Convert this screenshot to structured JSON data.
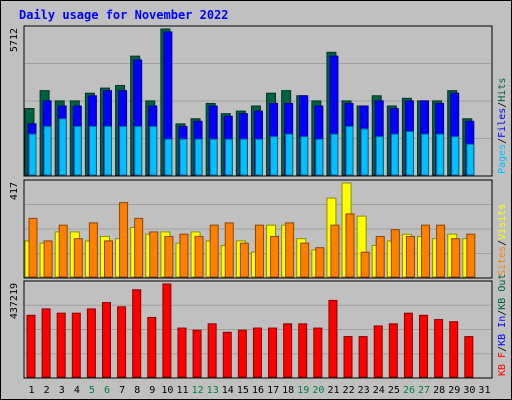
{
  "title": "Daily usage for November 2022",
  "colors": {
    "background": "#c0c0c0",
    "title_text": "#0000ff",
    "hits": "#006040",
    "files": "#0000ff",
    "pages": "#00c0ff",
    "visits": "#ffff00",
    "sites": "#ff8000",
    "kb": "#ff0000",
    "weekend_day": "#008040",
    "weekday_day": "#000000"
  },
  "chart_data": [
    {
      "type": "bar",
      "panel": "hits-files-pages",
      "max_label": "5712",
      "ylim": [
        0,
        5712
      ],
      "legend": [
        {
          "text": "Pages",
          "color_key": "pages"
        },
        {
          "text": "Files",
          "color_key": "files"
        },
        {
          "text": "Hits",
          "color_key": "hits"
        }
      ],
      "categories": [
        "1",
        "2",
        "3",
        "4",
        "5",
        "6",
        "7",
        "8",
        "9",
        "10",
        "11",
        "12",
        "13",
        "14",
        "15",
        "16",
        "17",
        "18",
        "19",
        "20",
        "21",
        "22",
        "23",
        "24",
        "25",
        "26",
        "27",
        "28",
        "29",
        "30",
        "31"
      ],
      "series": [
        {
          "name": "Hits",
          "color_key": "hits",
          "values": [
            2600,
            3300,
            2900,
            2900,
            3200,
            3400,
            3500,
            4650,
            2900,
            5712,
            2000,
            2200,
            2800,
            2400,
            2500,
            2700,
            3200,
            3300,
            3100,
            2900,
            4800,
            2900,
            2700,
            3100,
            2700,
            3000,
            2900,
            2900,
            3300,
            2200,
            0
          ]
        },
        {
          "name": "Files",
          "color_key": "files",
          "values": [
            2000,
            2900,
            2700,
            2700,
            3100,
            3300,
            3300,
            4500,
            2700,
            5600,
            1900,
            2100,
            2700,
            2300,
            2400,
            2500,
            2800,
            2800,
            3100,
            2700,
            4650,
            2800,
            2700,
            2900,
            2600,
            2900,
            2900,
            2800,
            3200,
            2100,
            0
          ]
        },
        {
          "name": "Pages",
          "color_key": "pages",
          "values": [
            1600,
            1900,
            2200,
            1900,
            1900,
            1900,
            1900,
            1900,
            1900,
            1400,
            1400,
            1400,
            1400,
            1400,
            1400,
            1400,
            1500,
            1600,
            1500,
            1400,
            1600,
            1900,
            1800,
            1500,
            1600,
            1700,
            1600,
            1600,
            1500,
            1200,
            0
          ]
        }
      ]
    },
    {
      "type": "bar",
      "panel": "visits-sites",
      "max_label": "417",
      "ylim": [
        0,
        417
      ],
      "legend": [
        {
          "text": "Sites",
          "color_key": "sites"
        },
        {
          "text": "Visits",
          "color_key": "visits"
        }
      ],
      "categories": [
        "1",
        "2",
        "3",
        "4",
        "5",
        "6",
        "7",
        "8",
        "9",
        "10",
        "11",
        "12",
        "13",
        "14",
        "15",
        "16",
        "17",
        "18",
        "19",
        "20",
        "21",
        "22",
        "23",
        "24",
        "25",
        "26",
        "27",
        "28",
        "29",
        "30",
        "31"
      ],
      "series": [
        {
          "name": "Visits",
          "color_key": "visits",
          "values": [
            160,
            150,
            200,
            200,
            160,
            180,
            170,
            220,
            190,
            200,
            150,
            200,
            160,
            140,
            160,
            110,
            230,
            230,
            170,
            120,
            350,
            417,
            270,
            140,
            160,
            190,
            180,
            170,
            190,
            170,
            0
          ]
        },
        {
          "name": "Sites",
          "color_key": "sites",
          "values": [
            260,
            160,
            230,
            170,
            240,
            160,
            330,
            260,
            200,
            180,
            190,
            180,
            230,
            240,
            150,
            230,
            180,
            240,
            150,
            130,
            230,
            280,
            110,
            180,
            210,
            180,
            230,
            230,
            170,
            190,
            0
          ]
        }
      ]
    },
    {
      "type": "bar",
      "panel": "kb",
      "max_label": "437219",
      "ylim": [
        0,
        437219
      ],
      "legend": [
        {
          "text": "KB F",
          "color_key": "kb"
        },
        {
          "text": "KB In",
          "color_key": "files"
        },
        {
          "text": "KB Out",
          "color_key": "hits"
        }
      ],
      "categories": [
        "1",
        "2",
        "3",
        "4",
        "5",
        "6",
        "7",
        "8",
        "9",
        "10",
        "11",
        "12",
        "13",
        "14",
        "15",
        "16",
        "17",
        "18",
        "19",
        "20",
        "21",
        "22",
        "23",
        "24",
        "25",
        "26",
        "27",
        "28",
        "29",
        "30",
        "31"
      ],
      "series": [
        {
          "name": "KB F",
          "color_key": "kb",
          "values": [
            290000,
            320000,
            300000,
            300000,
            320000,
            350000,
            330000,
            410000,
            280000,
            437219,
            230000,
            220000,
            250000,
            210000,
            220000,
            230000,
            230000,
            250000,
            250000,
            230000,
            360000,
            190000,
            190000,
            240000,
            250000,
            300000,
            290000,
            270000,
            260000,
            190000,
            0
          ]
        }
      ]
    }
  ]
}
